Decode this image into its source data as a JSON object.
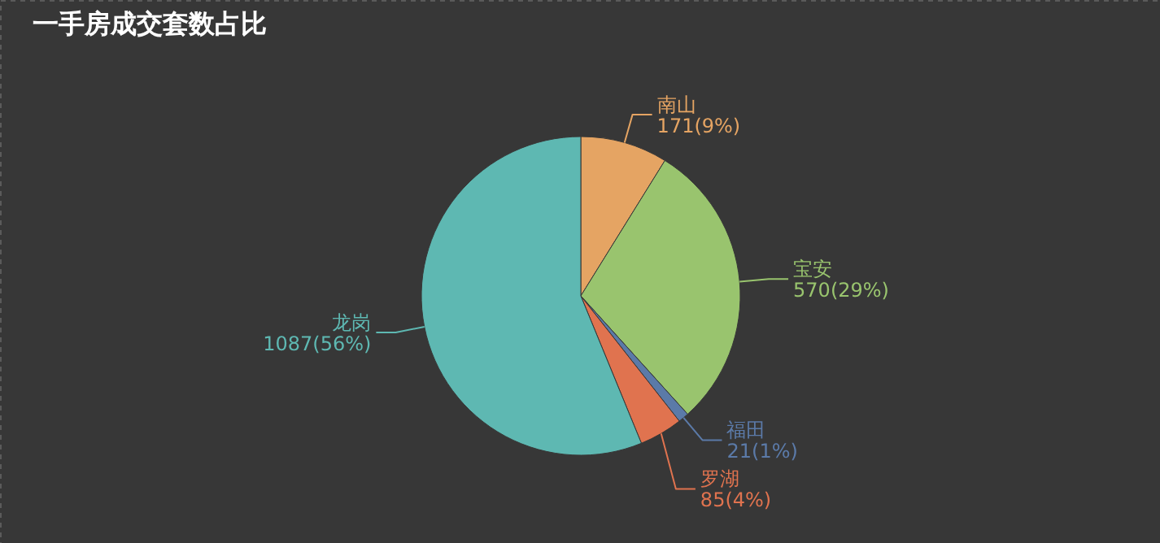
{
  "chart_data": {
    "type": "pie",
    "title": "一手房成交套数占比",
    "categories": [
      "南山",
      "宝安",
      "福田",
      "罗湖",
      "龙岗"
    ],
    "values": [
      171,
      570,
      21,
      85,
      1087
    ],
    "value_labels": [
      "171(9%)",
      "570(29%)",
      "21(1%)",
      "85(4%)",
      "1087(56%)"
    ],
    "colors": [
      "#e5a463",
      "#99c46e",
      "#5b7aa8",
      "#e0734f",
      "#5eb8b2"
    ]
  }
}
